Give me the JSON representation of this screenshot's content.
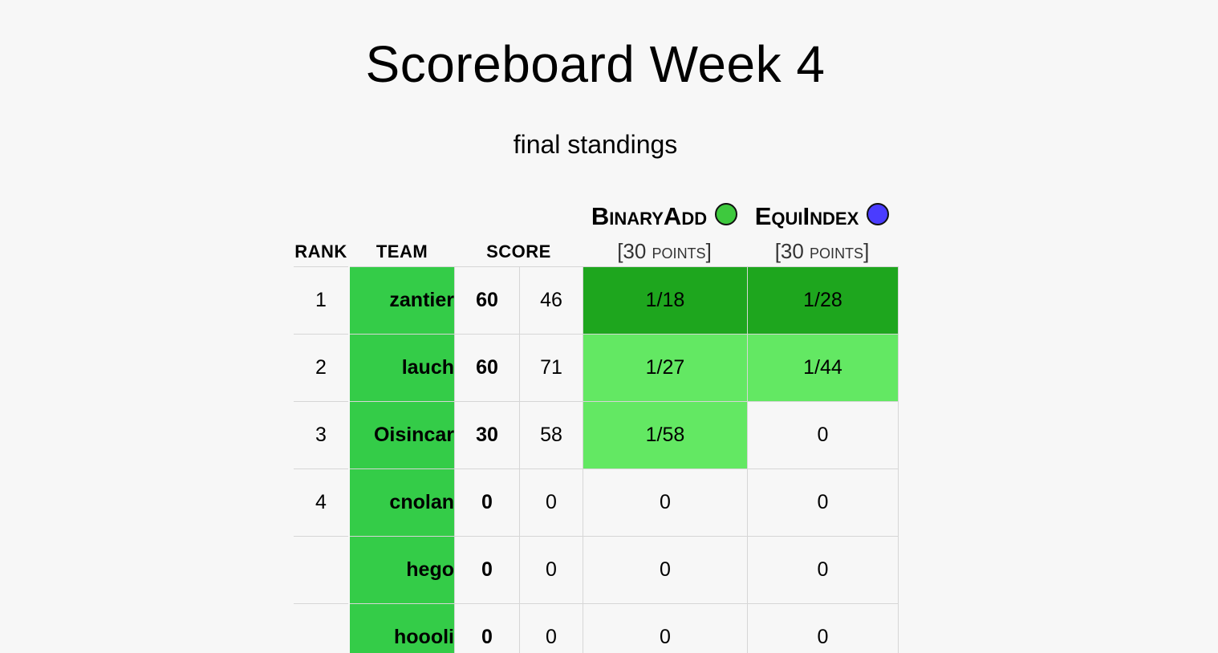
{
  "title": "Scoreboard Week 4",
  "subtitle": "final standings",
  "columns": {
    "rank": "RANK",
    "team": "TEAM",
    "score": "SCORE"
  },
  "problems": [
    {
      "name": "BinaryAdd",
      "points": "[30 points]",
      "color": "#3ec93e"
    },
    {
      "name": "EquiIndex",
      "points": "[30 points]",
      "color": "#4a3cff"
    }
  ],
  "colors": {
    "team_bg": "#34cc48",
    "first_solve": "#1ea61e",
    "solved": "#63e863",
    "background": "#f7f7f7"
  },
  "rows": [
    {
      "rank": "1",
      "team": "zantier",
      "score": "60",
      "penalty": "46",
      "p1": "1/18",
      "p1_state": "first",
      "p2": "1/28",
      "p2_state": "first"
    },
    {
      "rank": "2",
      "team": "lauch",
      "score": "60",
      "penalty": "71",
      "p1": "1/27",
      "p1_state": "solved",
      "p2": "1/44",
      "p2_state": "solved"
    },
    {
      "rank": "3",
      "team": "Oisincar",
      "score": "30",
      "penalty": "58",
      "p1": "1/58",
      "p1_state": "solved",
      "p2": "0",
      "p2_state": "none"
    },
    {
      "rank": "4",
      "team": "cnolan",
      "score": "0",
      "penalty": "0",
      "p1": "0",
      "p1_state": "none",
      "p2": "0",
      "p2_state": "none"
    },
    {
      "rank": "",
      "team": "hego",
      "score": "0",
      "penalty": "0",
      "p1": "0",
      "p1_state": "none",
      "p2": "0",
      "p2_state": "none"
    },
    {
      "rank": "",
      "team": "hoooli",
      "score": "0",
      "penalty": "0",
      "p1": "0",
      "p1_state": "none",
      "p2": "0",
      "p2_state": "none"
    }
  ]
}
